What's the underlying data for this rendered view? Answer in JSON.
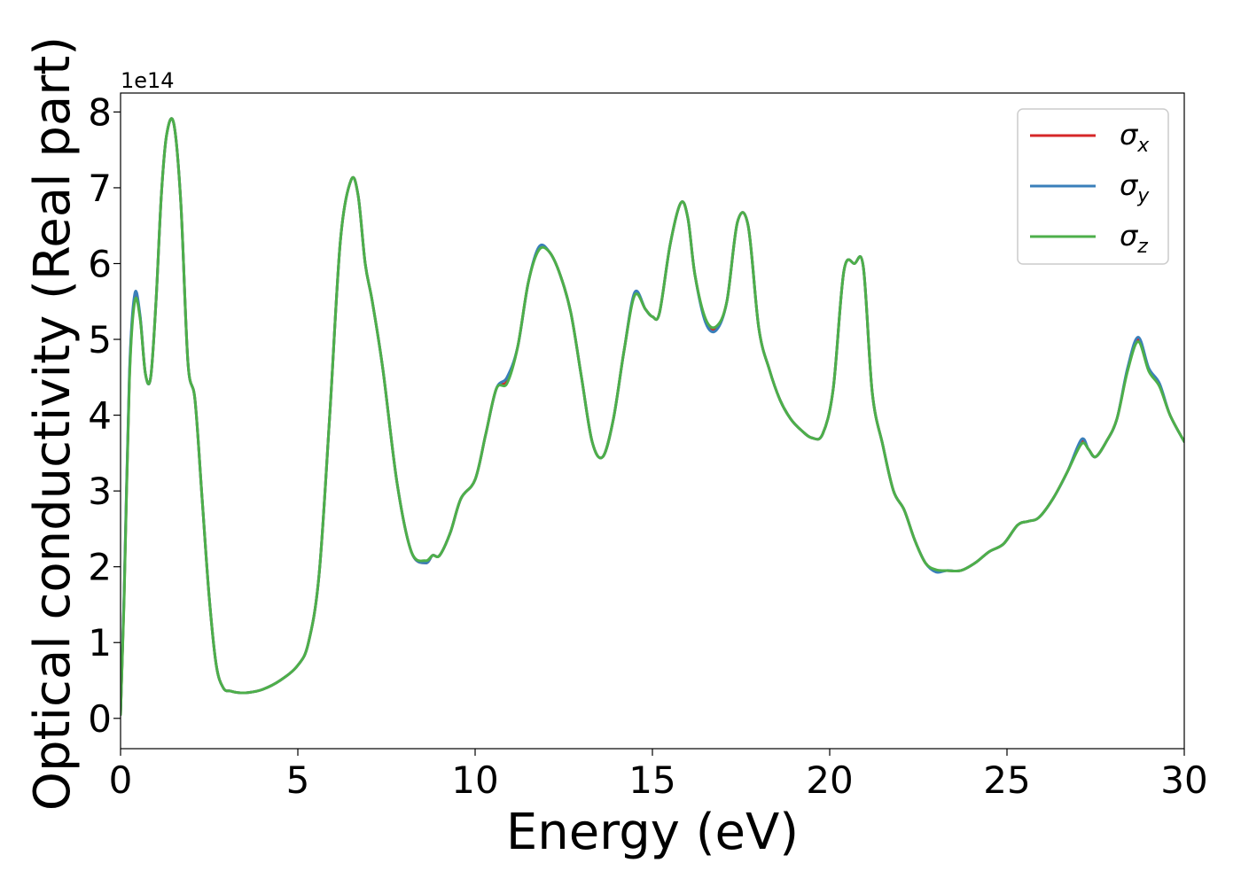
{
  "chart_data": {
    "type": "line",
    "title": "",
    "xlabel": "Energy (eV)",
    "ylabel": "Optical conductivity (Real part)",
    "y_offset_label": "1e14",
    "xlim": [
      0,
      30
    ],
    "ylim": [
      -0.4,
      8.25
    ],
    "x_ticks": [
      0,
      5,
      10,
      15,
      20,
      25,
      30
    ],
    "y_ticks": [
      0,
      1,
      2,
      3,
      4,
      5,
      6,
      7,
      8
    ],
    "grid": false,
    "legend_position": "top-right",
    "colors": {
      "sigma_x": "#d62728",
      "sigma_y": "#3a7fba",
      "sigma_z": "#4daf4a"
    },
    "x": [
      0,
      0.1,
      0.25,
      0.4,
      0.55,
      0.7,
      0.85,
      1.0,
      1.15,
      1.3,
      1.5,
      1.7,
      1.9,
      2.1,
      2.3,
      2.5,
      2.7,
      2.9,
      3.1,
      3.3,
      3.6,
      4.0,
      4.5,
      5.0,
      5.3,
      5.6,
      5.9,
      6.2,
      6.5,
      6.7,
      6.9,
      7.1,
      7.4,
      7.8,
      8.2,
      8.6,
      8.8,
      9.0,
      9.3,
      9.6,
      10.0,
      10.3,
      10.6,
      10.9,
      11.2,
      11.5,
      11.8,
      12.1,
      12.4,
      12.7,
      13.0,
      13.3,
      13.6,
      13.9,
      14.2,
      14.5,
      14.8,
      15.0,
      15.2,
      15.5,
      15.8,
      16.0,
      16.2,
      16.5,
      16.8,
      17.1,
      17.4,
      17.7,
      18.0,
      18.3,
      18.6,
      18.9,
      19.2,
      19.5,
      19.8,
      20.1,
      20.4,
      20.7,
      20.95,
      21.2,
      21.5,
      21.8,
      22.1,
      22.4,
      22.7,
      23.0,
      23.3,
      23.7,
      24.1,
      24.5,
      24.9,
      25.3,
      25.6,
      25.9,
      26.3,
      26.7,
      27.1,
      27.3,
      27.5,
      27.8,
      28.1,
      28.4,
      28.7,
      29.0,
      29.3,
      29.6,
      30.0
    ],
    "series": [
      {
        "name": "σ_x",
        "label": "σ",
        "subscript": "x",
        "values": [
          0.05,
          1.6,
          4.5,
          5.55,
          5.3,
          4.55,
          4.5,
          5.5,
          6.9,
          7.7,
          7.85,
          6.8,
          4.7,
          4.2,
          2.9,
          1.6,
          0.7,
          0.4,
          0.36,
          0.34,
          0.34,
          0.38,
          0.5,
          0.7,
          1.0,
          1.9,
          4.0,
          6.3,
          7.1,
          6.9,
          6.0,
          5.5,
          4.6,
          3.1,
          2.2,
          2.05,
          2.15,
          2.15,
          2.45,
          2.9,
          3.15,
          3.75,
          4.35,
          4.45,
          4.9,
          5.75,
          6.2,
          6.15,
          5.85,
          5.35,
          4.5,
          3.65,
          3.45,
          3.95,
          4.85,
          5.6,
          5.4,
          5.3,
          5.35,
          6.25,
          6.8,
          6.6,
          5.85,
          5.25,
          5.15,
          5.5,
          6.55,
          6.5,
          5.15,
          4.6,
          4.2,
          3.95,
          3.8,
          3.7,
          3.75,
          4.35,
          5.9,
          6.0,
          5.95,
          4.3,
          3.6,
          3.0,
          2.75,
          2.35,
          2.05,
          1.95,
          1.95,
          1.95,
          2.05,
          2.2,
          2.3,
          2.55,
          2.6,
          2.65,
          2.9,
          3.25,
          3.65,
          3.55,
          3.45,
          3.65,
          3.95,
          4.6,
          5.0,
          4.6,
          4.4,
          4.0,
          3.65
        ]
      },
      {
        "name": "σ_y",
        "label": "σ",
        "subscript": "y",
        "values": [
          0.05,
          1.65,
          4.55,
          5.6,
          5.32,
          4.55,
          4.5,
          5.5,
          6.9,
          7.7,
          7.85,
          6.8,
          4.7,
          4.2,
          2.9,
          1.6,
          0.7,
          0.4,
          0.36,
          0.34,
          0.34,
          0.38,
          0.5,
          0.7,
          1.0,
          1.9,
          4.0,
          6.3,
          7.1,
          6.9,
          6.0,
          5.5,
          4.6,
          3.1,
          2.2,
          2.05,
          2.15,
          2.15,
          2.45,
          2.9,
          3.15,
          3.75,
          4.35,
          4.5,
          4.9,
          5.75,
          6.22,
          6.15,
          5.85,
          5.35,
          4.5,
          3.65,
          3.45,
          3.95,
          4.85,
          5.62,
          5.4,
          5.3,
          5.35,
          6.25,
          6.8,
          6.6,
          5.85,
          5.22,
          5.12,
          5.5,
          6.55,
          6.5,
          5.15,
          4.6,
          4.2,
          3.95,
          3.8,
          3.7,
          3.75,
          4.35,
          5.9,
          6.0,
          5.95,
          4.3,
          3.6,
          3.0,
          2.75,
          2.35,
          2.05,
          1.93,
          1.95,
          1.95,
          2.05,
          2.2,
          2.3,
          2.55,
          2.6,
          2.65,
          2.9,
          3.25,
          3.68,
          3.55,
          3.45,
          3.65,
          3.95,
          4.62,
          5.03,
          4.62,
          4.42,
          4.0,
          3.65
        ]
      },
      {
        "name": "σ_z",
        "label": "σ",
        "subscript": "z",
        "values": [
          0.05,
          1.55,
          4.45,
          5.5,
          5.28,
          4.55,
          4.5,
          5.5,
          6.9,
          7.7,
          7.85,
          6.8,
          4.7,
          4.2,
          2.9,
          1.6,
          0.7,
          0.4,
          0.36,
          0.34,
          0.34,
          0.38,
          0.5,
          0.7,
          1.0,
          1.9,
          4.0,
          6.3,
          7.1,
          6.9,
          6.0,
          5.5,
          4.6,
          3.1,
          2.2,
          2.08,
          2.15,
          2.15,
          2.45,
          2.9,
          3.15,
          3.75,
          4.35,
          4.42,
          4.9,
          5.75,
          6.18,
          6.15,
          5.85,
          5.35,
          4.5,
          3.65,
          3.45,
          3.95,
          4.85,
          5.58,
          5.4,
          5.3,
          5.35,
          6.25,
          6.8,
          6.6,
          5.85,
          5.27,
          5.17,
          5.5,
          6.55,
          6.5,
          5.15,
          4.6,
          4.2,
          3.95,
          3.8,
          3.7,
          3.75,
          4.35,
          5.9,
          6.0,
          5.95,
          4.3,
          3.6,
          3.0,
          2.75,
          2.35,
          2.05,
          1.96,
          1.95,
          1.95,
          2.05,
          2.2,
          2.3,
          2.55,
          2.6,
          2.65,
          2.9,
          3.25,
          3.62,
          3.55,
          3.45,
          3.65,
          3.95,
          4.58,
          4.97,
          4.58,
          4.38,
          4.0,
          3.65
        ]
      }
    ]
  }
}
